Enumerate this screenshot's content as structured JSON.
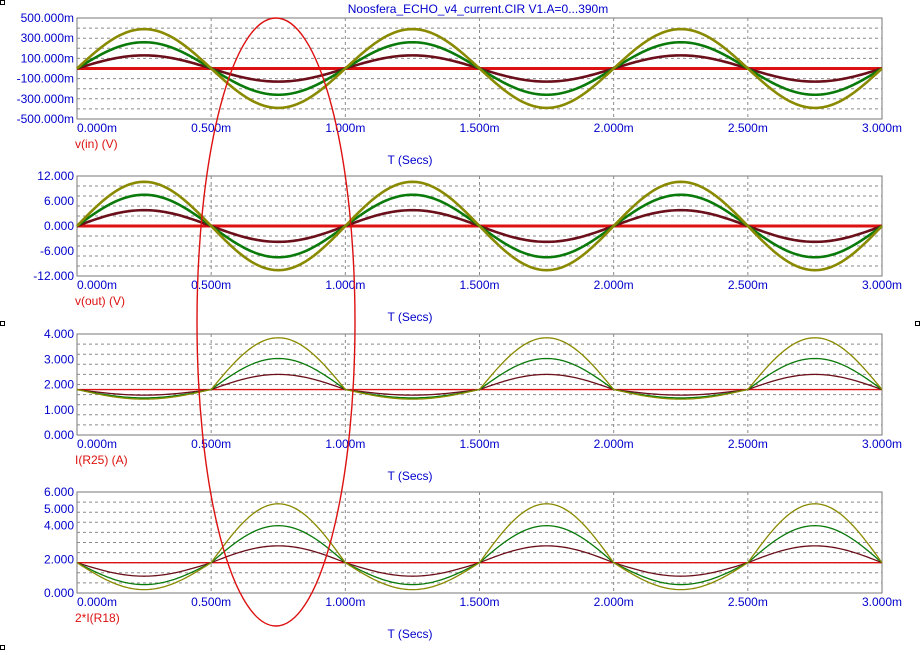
{
  "title": "Noosfera_ECHO_v4_current.CIR V1.A=0...390m",
  "x_axis_label": "T (Secs)",
  "x_ticks": [
    "0.000m",
    "0.500m",
    "1.000m",
    "1.500m",
    "2.000m",
    "2.500m",
    "3.000m"
  ],
  "colors": {
    "axis_text": "#0000cc",
    "trace_label": "#dd1111",
    "grid": "#8a8a8a",
    "series": [
      "#dd1111",
      "#6b0f1a",
      "#0a7a0a",
      "#8a8a00"
    ],
    "highlight_ellipse": "#dd1111"
  },
  "chart_data": [
    {
      "type": "line",
      "trace_label": "v(in) (V)",
      "xlabel": "T (Secs)",
      "xlim": [
        0,
        3
      ],
      "x_unit": "ms",
      "ylim": [
        -500,
        500
      ],
      "y_unit": "mV",
      "y_ticks": [
        "500.000m",
        "300.000m",
        "100.000m",
        "-100.000m",
        "-300.000m",
        "-500.000m"
      ],
      "waveform": {
        "kind": "sine",
        "period_ms": 1.0,
        "offset": 0
      },
      "series": [
        {
          "color": "#dd1111",
          "amplitude": 0
        },
        {
          "color": "#6b0f1a",
          "amplitude": 130
        },
        {
          "color": "#0a7a0a",
          "amplitude": 260
        },
        {
          "color": "#8a8a00",
          "amplitude": 390
        }
      ]
    },
    {
      "type": "line",
      "trace_label": "v(out) (V)",
      "xlabel": "T (Secs)",
      "xlim": [
        0,
        3
      ],
      "x_unit": "ms",
      "ylim": [
        -12,
        12
      ],
      "y_unit": "V",
      "y_ticks": [
        "12.000",
        "6.000",
        "0.000",
        "-6.000",
        "-12.000"
      ],
      "waveform": {
        "kind": "sine",
        "period_ms": 1.0,
        "offset": 0
      },
      "series": [
        {
          "color": "#dd1111",
          "amplitude": 0
        },
        {
          "color": "#6b0f1a",
          "amplitude": 3.8
        },
        {
          "color": "#0a7a0a",
          "amplitude": 7.5
        },
        {
          "color": "#8a8a00",
          "amplitude": 10.6
        }
      ]
    },
    {
      "type": "line",
      "trace_label": "I(R25) (A)",
      "xlabel": "T (Secs)",
      "xlim": [
        0,
        3
      ],
      "x_unit": "ms",
      "ylim": [
        0,
        4
      ],
      "y_unit": "A",
      "y_ticks": [
        "4.000",
        "3.000",
        "2.000",
        "1.000",
        "0.000"
      ],
      "waveform": {
        "kind": "half-wave-asymmetric",
        "period_ms": 1.0,
        "offset": 1.8
      },
      "series": [
        {
          "color": "#dd1111",
          "pos_amp": 0,
          "neg_amp": 0
        },
        {
          "color": "#6b0f1a",
          "pos_amp": 0.6,
          "neg_amp": 0.22
        },
        {
          "color": "#0a7a0a",
          "pos_amp": 1.23,
          "neg_amp": 0.33
        },
        {
          "color": "#8a8a00",
          "pos_amp": 2.05,
          "neg_amp": 0.38
        }
      ]
    },
    {
      "type": "line",
      "trace_label": "2*I(R18)",
      "xlabel": "T (Secs)",
      "xlim": [
        0,
        3
      ],
      "x_unit": "ms",
      "ylim": [
        0,
        6
      ],
      "y_unit": "A",
      "y_ticks": [
        "6.000",
        "5.000",
        "4.000",
        "2.000",
        "0.000"
      ],
      "waveform": {
        "kind": "half-wave-asymmetric",
        "period_ms": 1.0,
        "offset": 1.8
      },
      "series": [
        {
          "color": "#dd1111",
          "pos_amp": 0,
          "neg_amp": 0
        },
        {
          "color": "#6b0f1a",
          "pos_amp": 1.0,
          "neg_amp": 0.8
        },
        {
          "color": "#0a7a0a",
          "pos_amp": 2.2,
          "neg_amp": 1.3
        },
        {
          "color": "#8a8a00",
          "pos_amp": 3.5,
          "neg_amp": 1.6
        }
      ]
    }
  ]
}
